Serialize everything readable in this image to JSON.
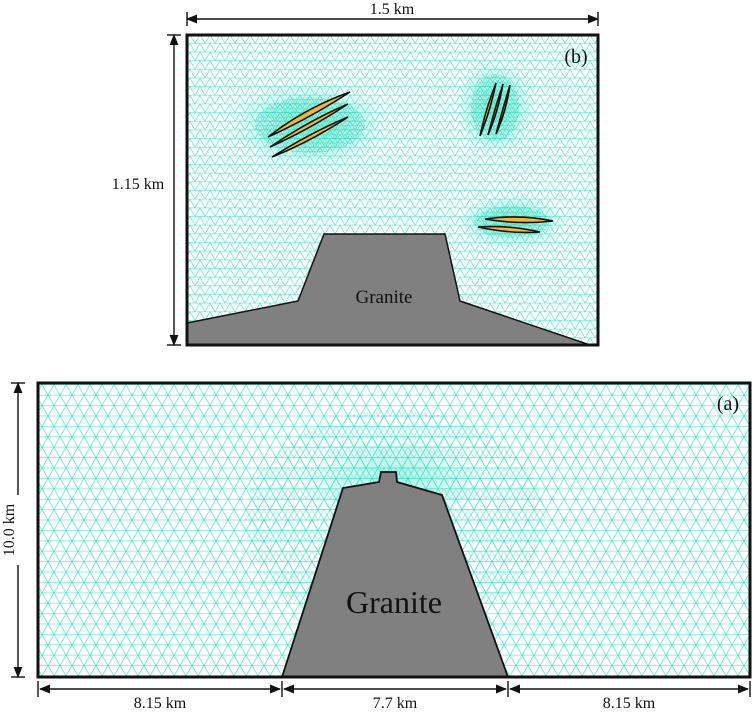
{
  "panel_b": {
    "tag": "(b)",
    "width_label": "1.5 km",
    "height_label": "1.15 km",
    "granite_label": "Granite"
  },
  "panel_a": {
    "tag": "(a)",
    "height_label": "10.0 km",
    "granite_label": "Granite",
    "bottom_left_label": "8.15 km",
    "bottom_middle_label": "7.7 km",
    "bottom_right_label": "8.15 km"
  },
  "colors": {
    "mesh": "#26e3c2",
    "granite": "#808080",
    "ore": "#f5b636",
    "outline": "#111111"
  }
}
